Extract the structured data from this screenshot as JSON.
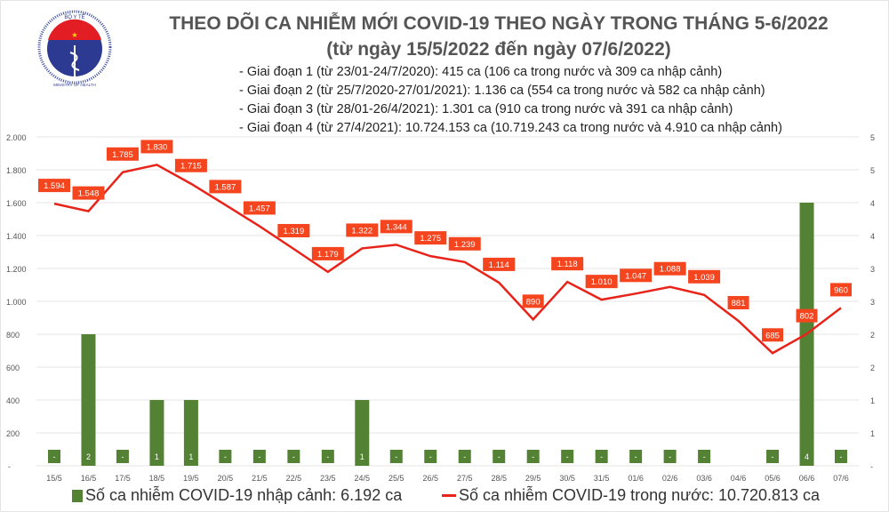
{
  "header": {
    "title": "THEO DÕI CA NHIỄM MỚI COVID-19 THEO NGÀY TRONG THÁNG 5-6/2022",
    "subtitle": "(từ ngày 15/5/2022 đến ngày 07/6/2022)",
    "stages": [
      "- Giai đoạn 1 (từ 23/01-24/7/2020): 415 ca (106 ca trong nước và 309 ca nhập cảnh)",
      "- Giai đoạn 2 (từ 25/7/2020-27/01/2021): 1.136 ca (554 ca trong nước và 582 ca nhập cảnh)",
      "- Giai đoạn 3 (từ 28/01-26/4/2021): 1.301 ca (910 ca trong nước và 391 ca nhập cảnh)",
      "- Giai đoạn 4 (từ 27/4/2021): 10.724.153 ca (10.719.243 ca trong nước và 4.910 ca nhập cảnh)"
    ],
    "logo_text": [
      "BỘ Y TẾ",
      "MINISTRY OF HEALTH"
    ]
  },
  "chart_data": {
    "type": "bar+line",
    "categories": [
      "15/5",
      "16/5",
      "17/5",
      "18/5",
      "19/5",
      "20/5",
      "21/5",
      "22/5",
      "23/5",
      "24/5",
      "25/5",
      "26/5",
      "27/5",
      "28/5",
      "29/5",
      "30/5",
      "31/5",
      "01/6",
      "02/6",
      "03/6",
      "04/6",
      "05/6",
      "06/6",
      "07/6"
    ],
    "series": [
      {
        "name": "Số ca nhiễm COVID-19 nhập cảnh: 6.192 ca",
        "type": "bar",
        "axis": "right",
        "color": "#548235",
        "values": [
          0,
          2,
          0,
          1,
          1,
          0,
          0,
          0,
          0,
          1,
          0,
          0,
          0,
          0,
          0,
          0,
          0,
          0,
          0,
          0,
          null,
          0,
          4,
          0
        ],
        "labels": [
          "-",
          "2",
          "-",
          "1",
          "1",
          "-",
          "-",
          "-",
          "-",
          "1",
          "-",
          "-",
          "-",
          "-",
          "-",
          "-",
          "-",
          "-",
          "-",
          "-",
          "",
          "-",
          "4",
          "-"
        ]
      },
      {
        "name": "Số ca nhiễm COVID-19 trong nước: 10.720.813 ca",
        "type": "line",
        "axis": "left",
        "color": "#e8231a",
        "values": [
          1594,
          1548,
          1785,
          1830,
          1715,
          1587,
          1457,
          1319,
          1179,
          1322,
          1344,
          1275,
          1239,
          1114,
          890,
          1118,
          1010,
          1047,
          1088,
          1039,
          881,
          685,
          802,
          960
        ],
        "labels": [
          "1.594",
          "1.548",
          "1.785",
          "1.830",
          "1.715",
          "1.587",
          "1.457",
          "1.319",
          "1.179",
          "1.322",
          "1.344",
          "1.275",
          "1.239",
          "1.114",
          "890",
          "1.118",
          "1.010",
          "1.047",
          "1.088",
          "1.039",
          "881",
          "685",
          "802",
          "960"
        ]
      }
    ],
    "left_axis": {
      "range": [
        0,
        2000
      ],
      "ticks": [
        "-",
        "200",
        "400",
        "600",
        "800",
        "1.000",
        "1.200",
        "1.400",
        "1.600",
        "1.800",
        "2.000"
      ]
    },
    "right_axis": {
      "range": [
        0,
        5
      ],
      "ticks": [
        "-",
        "1",
        "1",
        "2",
        "2",
        "3",
        "3",
        "4",
        "4",
        "5",
        "5"
      ]
    },
    "grid": true,
    "legend": "bottom"
  }
}
